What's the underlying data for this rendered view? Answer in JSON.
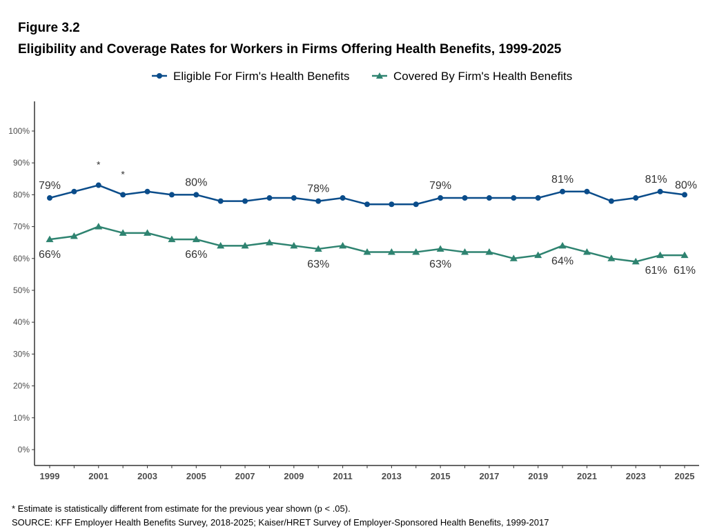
{
  "figure_label": "Figure 3.2",
  "title": "Eligibility and Coverage Rates for Workers in Firms Offering Health Benefits, 1999-2025",
  "footnote": "* Estimate is statistically different from estimate for the previous year shown (p < .05).",
  "source": "SOURCE: KFF Employer Health Benefits Survey, 2018-2025; Kaiser/HRET Survey of Employer-Sponsored Health Benefits, 1999-2017",
  "chart_data": {
    "type": "line",
    "title": "Eligibility and Coverage Rates for Workers in Firms Offering Health Benefits, 1999-2025",
    "xlabel": "",
    "ylabel": "",
    "x": [
      1999,
      2000,
      2001,
      2002,
      2003,
      2004,
      2005,
      2006,
      2007,
      2008,
      2009,
      2010,
      2011,
      2012,
      2013,
      2014,
      2015,
      2016,
      2017,
      2018,
      2019,
      2020,
      2021,
      2022,
      2023,
      2024,
      2025
    ],
    "x_tick_labels": [
      "1999",
      "2001",
      "2003",
      "2005",
      "2007",
      "2009",
      "2011",
      "2013",
      "2015",
      "2017",
      "2019",
      "2021",
      "2023",
      "2025"
    ],
    "y_tick_labels": [
      "0%",
      "10%",
      "20%",
      "30%",
      "40%",
      "50%",
      "60%",
      "70%",
      "80%",
      "90%",
      "100%"
    ],
    "ylim": [
      -5,
      109
    ],
    "grid": false,
    "legend_position": "top",
    "series": [
      {
        "name": "Eligible For Firm's Health Benefits",
        "color": "#0a4c8a",
        "marker": "circle",
        "values": [
          79,
          81,
          83,
          80,
          81,
          80,
          80,
          78,
          78,
          79,
          79,
          78,
          79,
          77,
          77,
          77,
          79,
          79,
          79,
          79,
          79,
          81,
          81,
          78,
          79,
          81,
          80
        ],
        "labeled_years": [
          1999,
          2005,
          2010,
          2015,
          2020,
          2024,
          2025
        ],
        "significant_years": [
          2001,
          2002
        ]
      },
      {
        "name": "Covered By Firm's Health Benefits",
        "color": "#2e8370",
        "marker": "triangle",
        "values": [
          66,
          67,
          70,
          68,
          68,
          66,
          66,
          64,
          64,
          65,
          64,
          63,
          64,
          62,
          62,
          62,
          63,
          62,
          62,
          60,
          61,
          64,
          62,
          60,
          59,
          61,
          61
        ],
        "labeled_years": [
          1999,
          2005,
          2010,
          2015,
          2020,
          2024,
          2025
        ],
        "significant_years": []
      }
    ],
    "significance_marker": "*"
  }
}
